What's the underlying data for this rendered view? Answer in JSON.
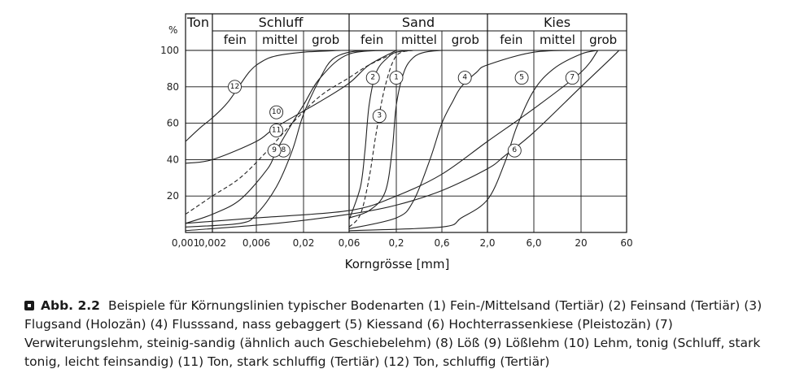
{
  "figure": {
    "label": "Abb. 2.2",
    "caption": "Beispiele für Körnungslinien typischer Bodenarten (1) Fein-/Mittelsand (Tertiär) (2) Feinsand (Tertiär) (3) Flugsand (Holozän) (4) Flusssand, nass gebaggert (5) Kiessand (6) Hochterrassenkiese (Pleistozän) (7) Verwiterungslehm, steinig-sandig (ähnlich auch Geschiebelehm) (8) Löß (9) Lößlehm (10) Lehm, tonig (Schluff, stark tonig, leicht feinsandig) (11) Ton, stark schluffig (Tertiär) (12) Ton, schluffig (Tertiär)"
  },
  "chart_data": {
    "type": "line",
    "xlabel": "Korngrösse [mm]",
    "ylabel": "%",
    "x_scale": "log",
    "xlim": [
      0.001,
      60
    ],
    "ylim": [
      0,
      100
    ],
    "x_ticks": [
      "0,001",
      "0,002",
      "0,006",
      "0,02",
      "0,06",
      "0,2",
      "0,6",
      "2,0",
      "6,0",
      "20",
      "60"
    ],
    "y_ticks": [
      20,
      40,
      60,
      80,
      100
    ],
    "header": {
      "groups": [
        {
          "label": "Ton",
          "from": 0.001,
          "to": 0.002,
          "subs": []
        },
        {
          "label": "Schluff",
          "from": 0.002,
          "to": 0.06,
          "subs": [
            "fein",
            "mittel",
            "grob"
          ]
        },
        {
          "label": "Sand",
          "from": 0.06,
          "to": 2.0,
          "subs": [
            "fein",
            "mittel",
            "grob"
          ]
        },
        {
          "label": "Kies",
          "from": 2.0,
          "to": 60,
          "subs": [
            "fein",
            "mittel",
            "grob"
          ]
        }
      ]
    },
    "series": [
      {
        "name": "1",
        "dashed": false,
        "label_at": [
          0.2,
          85
        ],
        "points": [
          [
            0.06,
            8
          ],
          [
            0.1,
            12
          ],
          [
            0.15,
            22
          ],
          [
            0.18,
            45
          ],
          [
            0.2,
            70
          ],
          [
            0.24,
            88
          ],
          [
            0.3,
            96
          ],
          [
            0.4,
            99
          ],
          [
            0.6,
            100
          ]
        ]
      },
      {
        "name": "2",
        "dashed": false,
        "label_at": [
          0.11,
          85
        ],
        "points": [
          [
            0.06,
            7
          ],
          [
            0.08,
            25
          ],
          [
            0.09,
            45
          ],
          [
            0.1,
            70
          ],
          [
            0.12,
            88
          ],
          [
            0.16,
            96
          ],
          [
            0.2,
            99
          ],
          [
            0.3,
            100
          ]
        ]
      },
      {
        "name": "3",
        "dashed": true,
        "label_at": [
          0.13,
          64
        ],
        "points": [
          [
            0.06,
            3
          ],
          [
            0.08,
            10
          ],
          [
            0.1,
            30
          ],
          [
            0.12,
            55
          ],
          [
            0.15,
            80
          ],
          [
            0.2,
            97
          ],
          [
            0.3,
            100
          ]
        ]
      },
      {
        "name": "4",
        "dashed": false,
        "label_at": [
          1.1,
          85
        ],
        "points": [
          [
            0.06,
            2
          ],
          [
            0.2,
            8
          ],
          [
            0.3,
            17
          ],
          [
            0.45,
            40
          ],
          [
            0.6,
            60
          ],
          [
            0.8,
            72
          ],
          [
            1.0,
            80
          ],
          [
            1.5,
            88
          ],
          [
            2.0,
            92
          ],
          [
            6.0,
            99
          ],
          [
            20,
            100
          ]
        ]
      },
      {
        "name": "5",
        "dashed": false,
        "label_at": [
          4.5,
          85
        ],
        "points": [
          [
            0.06,
            1
          ],
          [
            0.6,
            3
          ],
          [
            1.0,
            8
          ],
          [
            2.0,
            18
          ],
          [
            3.0,
            38
          ],
          [
            4.0,
            58
          ],
          [
            6.0,
            78
          ],
          [
            10,
            90
          ],
          [
            20,
            98
          ],
          [
            30,
            100
          ]
        ]
      },
      {
        "name": "6",
        "dashed": false,
        "label_at": [
          3.8,
          45
        ],
        "points": [
          [
            0.001,
            1
          ],
          [
            0.01,
            5
          ],
          [
            0.06,
            10
          ],
          [
            0.2,
            15
          ],
          [
            0.6,
            23
          ],
          [
            2.0,
            35
          ],
          [
            3.0,
            42
          ],
          [
            6.0,
            55
          ],
          [
            20,
            80
          ],
          [
            40,
            95
          ],
          [
            50,
            100
          ]
        ]
      },
      {
        "name": "7",
        "dashed": false,
        "label_at": [
          16,
          85
        ],
        "points": [
          [
            0.001,
            5
          ],
          [
            0.006,
            8
          ],
          [
            0.06,
            12
          ],
          [
            0.2,
            20
          ],
          [
            0.6,
            32
          ],
          [
            2.0,
            50
          ],
          [
            6.0,
            68
          ],
          [
            20,
            88
          ],
          [
            30,
            100
          ]
        ]
      },
      {
        "name": "8",
        "dashed": false,
        "label_at": [
          0.012,
          45
        ],
        "points": [
          [
            0.001,
            3
          ],
          [
            0.004,
            5
          ],
          [
            0.006,
            10
          ],
          [
            0.01,
            25
          ],
          [
            0.015,
            45
          ],
          [
            0.02,
            65
          ],
          [
            0.03,
            85
          ],
          [
            0.04,
            95
          ],
          [
            0.06,
            99
          ],
          [
            0.1,
            100
          ]
        ]
      },
      {
        "name": "9",
        "dashed": false,
        "label_at": [
          0.0095,
          45
        ],
        "points": [
          [
            0.001,
            5
          ],
          [
            0.002,
            10
          ],
          [
            0.004,
            18
          ],
          [
            0.008,
            35
          ],
          [
            0.01,
            45
          ],
          [
            0.015,
            60
          ],
          [
            0.02,
            70
          ],
          [
            0.03,
            85
          ],
          [
            0.06,
            98
          ],
          [
            0.2,
            100
          ]
        ]
      },
      {
        "name": "10",
        "dashed": true,
        "label_at": [
          0.01,
          66
        ],
        "points": [
          [
            0.001,
            10
          ],
          [
            0.002,
            20
          ],
          [
            0.004,
            30
          ],
          [
            0.008,
            45
          ],
          [
            0.015,
            60
          ],
          [
            0.03,
            75
          ],
          [
            0.06,
            85
          ],
          [
            0.1,
            92
          ],
          [
            0.2,
            99
          ]
        ]
      },
      {
        "name": "11",
        "dashed": false,
        "label_at": [
          0.01,
          56
        ],
        "points": [
          [
            0.001,
            38
          ],
          [
            0.002,
            40
          ],
          [
            0.006,
            50
          ],
          [
            0.01,
            58
          ],
          [
            0.03,
            72
          ],
          [
            0.06,
            82
          ],
          [
            0.1,
            92
          ],
          [
            0.2,
            100
          ]
        ]
      },
      {
        "name": "12",
        "dashed": false,
        "label_at": [
          0.0035,
          80
        ],
        "points": [
          [
            0.001,
            50
          ],
          [
            0.0015,
            58
          ],
          [
            0.002,
            63
          ],
          [
            0.003,
            72
          ],
          [
            0.005,
            88
          ],
          [
            0.007,
            94
          ],
          [
            0.01,
            97
          ],
          [
            0.02,
            99
          ],
          [
            0.05,
            100
          ]
        ]
      }
    ]
  }
}
